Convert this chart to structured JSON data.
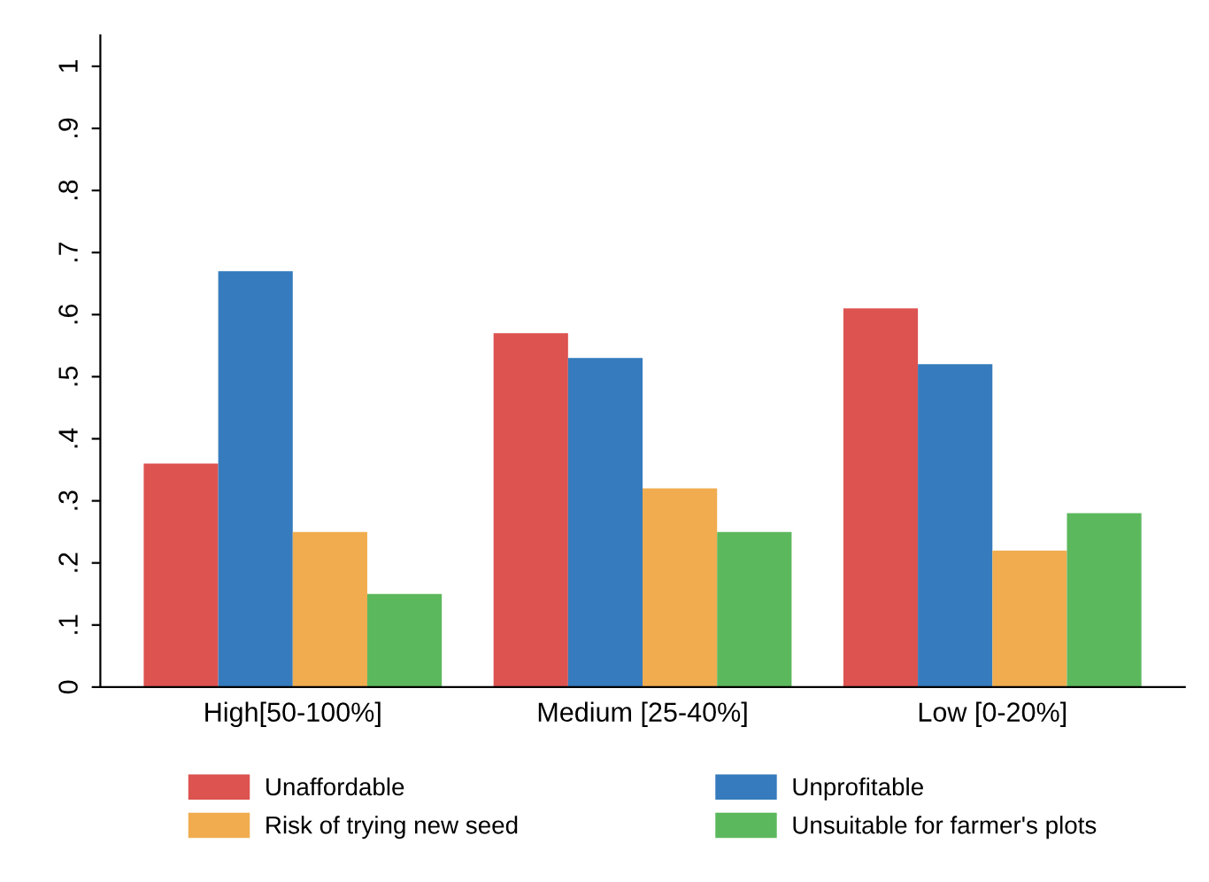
{
  "chart_data": {
    "type": "bar",
    "categories": [
      "High[50-100%]",
      "Medium [25-40%]",
      "Low [0-20%]"
    ],
    "series": [
      {
        "name": "Unaffordable",
        "color": "#dc5350",
        "values": [
          0.36,
          0.57,
          0.61
        ]
      },
      {
        "name": "Unprofitable",
        "color": "#357bbd",
        "values": [
          0.67,
          0.53,
          0.52
        ]
      },
      {
        "name": "Risk of trying new seed",
        "color": "#f0ac4f",
        "values": [
          0.25,
          0.32,
          0.22
        ]
      },
      {
        "name": "Unsuitable for farmer's plots",
        "color": "#5cb85c",
        "values": [
          0.15,
          0.25,
          0.28
        ]
      }
    ],
    "ylim": [
      0,
      1.05
    ],
    "yticks": [
      0,
      {
        "value": 0.1,
        "label": ".1"
      },
      {
        "value": 0.2,
        "label": ".2"
      },
      {
        "value": 0.3,
        "label": ".3"
      },
      {
        "value": 0.4,
        "label": ".4"
      },
      {
        "value": 0.5,
        "label": ".5"
      },
      {
        "value": 0.6,
        "label": ".6"
      },
      {
        "value": 0.7,
        "label": ".7"
      },
      {
        "value": 0.8,
        "label": ".8"
      },
      {
        "value": 0.9,
        "label": ".9"
      },
      1
    ],
    "grid": false,
    "legend": "bottom"
  }
}
